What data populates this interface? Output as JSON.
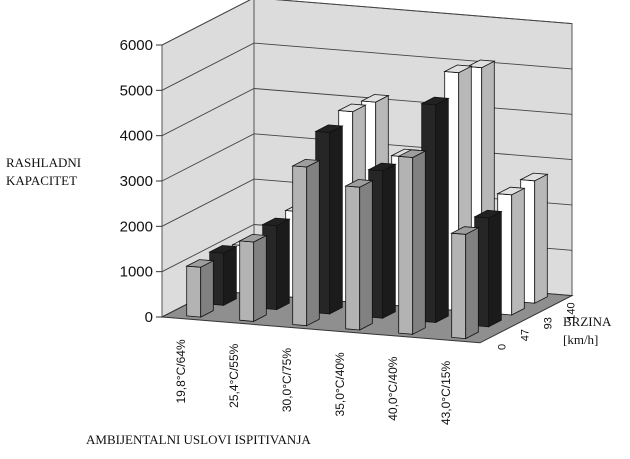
{
  "chart_data": {
    "type": "bar",
    "subtype": "3d-grouped-bar",
    "ylabel": [
      "RASHLADNI",
      "KAPACITET"
    ],
    "xlabel": "AMBIJENTALNI USLOVI ISPITIVANJA",
    "zlabel": [
      "BRZINA",
      "[km/h]"
    ],
    "ylim": [
      0,
      6000
    ],
    "yticks": [
      0,
      1000,
      2000,
      3000,
      4000,
      5000,
      6000
    ],
    "categories": [
      "19,8°C/64%",
      "25,4°C/55%",
      "30,0°C/75%",
      "35,0°C/40%",
      "40,0°C/40%",
      "43,0°C/15%"
    ],
    "series_labels": [
      "0",
      "47",
      "93",
      "140"
    ],
    "series": [
      {
        "name": "0",
        "values": [
          1100,
          1750,
          3500,
          3150,
          3900,
          2300
        ]
      },
      {
        "name": "47",
        "values": [
          1150,
          1850,
          4000,
          3250,
          4800,
          2400
        ]
      },
      {
        "name": "93",
        "values": [
          1050,
          1900,
          4200,
          3300,
          5250,
          2650
        ]
      },
      {
        "name": "140",
        "values": [
          900,
          1900,
          4150,
          3050,
          5100,
          2700
        ]
      }
    ],
    "colors": {
      "s0": "#b3b3b3",
      "s1": "#262626",
      "s2": "#ffffff",
      "s3": "#ffffff",
      "wall": "#dcdcdc",
      "floor": "#8f8f8f"
    },
    "grid": true
  }
}
